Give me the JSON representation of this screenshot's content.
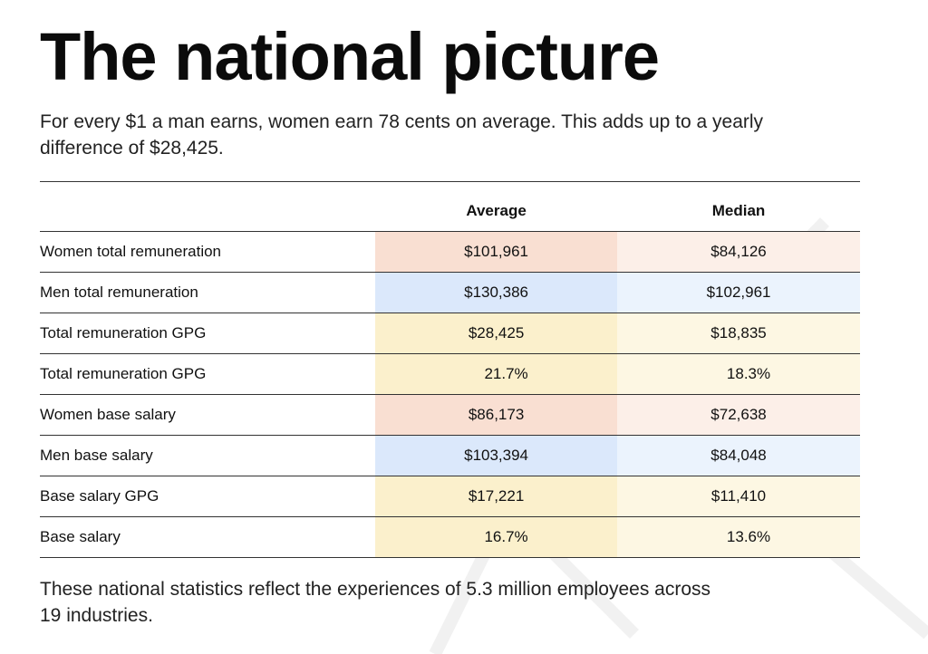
{
  "title": "The national picture",
  "intro": "For every $1 a man earns, women earn 78 cents on average. This adds up to a yearly difference of $28,425.",
  "table": {
    "headers": {
      "label": "",
      "average": "Average",
      "median": "Median"
    },
    "rows": [
      {
        "label": "Women total remuneration",
        "average": "$101,961",
        "median": "$84,126",
        "group": "women"
      },
      {
        "label": "Men total remuneration",
        "average": "$130,386",
        "median": "$102,961",
        "group": "men"
      },
      {
        "label": "Total remuneration GPG",
        "average": "$28,425",
        "median": "$18,835",
        "group": "gpg"
      },
      {
        "label": "Total remuneration GPG",
        "average": "21.7%",
        "median": "18.3%",
        "group": "gpg"
      },
      {
        "label": "Women base salary",
        "average": "$86,173",
        "median": "$72,638",
        "group": "women"
      },
      {
        "label": "Men base salary",
        "average": "$103,394",
        "median": "$84,048",
        "group": "men"
      },
      {
        "label": "Base salary GPG",
        "average": "$17,221",
        "median": "$11,410",
        "group": "gpg"
      },
      {
        "label": "Base salary",
        "average": "16.7%",
        "median": "13.6%",
        "group": "gpg"
      }
    ]
  },
  "outro": "These national statistics reflect the experiences of 5.3 million employees across 19 industries.",
  "colors": {
    "women_average": "#f9dfd2",
    "women_median": "#fcefe8",
    "men_average": "#dbe8fb",
    "men_median": "#ebf3fd",
    "gpg_average": "#fbf0cc",
    "gpg_median": "#fdf7e3"
  }
}
